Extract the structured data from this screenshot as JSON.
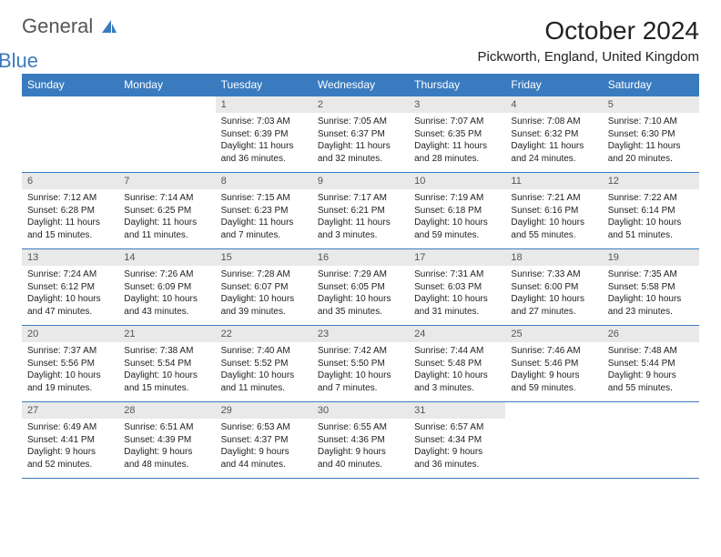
{
  "logo": {
    "part1": "General",
    "part2": "Blue"
  },
  "title": "October 2024",
  "location": "Pickworth, England, United Kingdom",
  "colors": {
    "header_bg": "#3a7bbf",
    "header_text": "#ffffff",
    "daynum_bg": "#e9e9e9",
    "border": "#3a7bbf",
    "logo_gray": "#555555",
    "logo_blue": "#3a7bbf"
  },
  "weekdays": [
    "Sunday",
    "Monday",
    "Tuesday",
    "Wednesday",
    "Thursday",
    "Friday",
    "Saturday"
  ],
  "weeks": [
    [
      null,
      null,
      {
        "n": "1",
        "sr": "Sunrise: 7:03 AM",
        "ss": "Sunset: 6:39 PM",
        "dl": "Daylight: 11 hours and 36 minutes."
      },
      {
        "n": "2",
        "sr": "Sunrise: 7:05 AM",
        "ss": "Sunset: 6:37 PM",
        "dl": "Daylight: 11 hours and 32 minutes."
      },
      {
        "n": "3",
        "sr": "Sunrise: 7:07 AM",
        "ss": "Sunset: 6:35 PM",
        "dl": "Daylight: 11 hours and 28 minutes."
      },
      {
        "n": "4",
        "sr": "Sunrise: 7:08 AM",
        "ss": "Sunset: 6:32 PM",
        "dl": "Daylight: 11 hours and 24 minutes."
      },
      {
        "n": "5",
        "sr": "Sunrise: 7:10 AM",
        "ss": "Sunset: 6:30 PM",
        "dl": "Daylight: 11 hours and 20 minutes."
      }
    ],
    [
      {
        "n": "6",
        "sr": "Sunrise: 7:12 AM",
        "ss": "Sunset: 6:28 PM",
        "dl": "Daylight: 11 hours and 15 minutes."
      },
      {
        "n": "7",
        "sr": "Sunrise: 7:14 AM",
        "ss": "Sunset: 6:25 PM",
        "dl": "Daylight: 11 hours and 11 minutes."
      },
      {
        "n": "8",
        "sr": "Sunrise: 7:15 AM",
        "ss": "Sunset: 6:23 PM",
        "dl": "Daylight: 11 hours and 7 minutes."
      },
      {
        "n": "9",
        "sr": "Sunrise: 7:17 AM",
        "ss": "Sunset: 6:21 PM",
        "dl": "Daylight: 11 hours and 3 minutes."
      },
      {
        "n": "10",
        "sr": "Sunrise: 7:19 AM",
        "ss": "Sunset: 6:18 PM",
        "dl": "Daylight: 10 hours and 59 minutes."
      },
      {
        "n": "11",
        "sr": "Sunrise: 7:21 AM",
        "ss": "Sunset: 6:16 PM",
        "dl": "Daylight: 10 hours and 55 minutes."
      },
      {
        "n": "12",
        "sr": "Sunrise: 7:22 AM",
        "ss": "Sunset: 6:14 PM",
        "dl": "Daylight: 10 hours and 51 minutes."
      }
    ],
    [
      {
        "n": "13",
        "sr": "Sunrise: 7:24 AM",
        "ss": "Sunset: 6:12 PM",
        "dl": "Daylight: 10 hours and 47 minutes."
      },
      {
        "n": "14",
        "sr": "Sunrise: 7:26 AM",
        "ss": "Sunset: 6:09 PM",
        "dl": "Daylight: 10 hours and 43 minutes."
      },
      {
        "n": "15",
        "sr": "Sunrise: 7:28 AM",
        "ss": "Sunset: 6:07 PM",
        "dl": "Daylight: 10 hours and 39 minutes."
      },
      {
        "n": "16",
        "sr": "Sunrise: 7:29 AM",
        "ss": "Sunset: 6:05 PM",
        "dl": "Daylight: 10 hours and 35 minutes."
      },
      {
        "n": "17",
        "sr": "Sunrise: 7:31 AM",
        "ss": "Sunset: 6:03 PM",
        "dl": "Daylight: 10 hours and 31 minutes."
      },
      {
        "n": "18",
        "sr": "Sunrise: 7:33 AM",
        "ss": "Sunset: 6:00 PM",
        "dl": "Daylight: 10 hours and 27 minutes."
      },
      {
        "n": "19",
        "sr": "Sunrise: 7:35 AM",
        "ss": "Sunset: 5:58 PM",
        "dl": "Daylight: 10 hours and 23 minutes."
      }
    ],
    [
      {
        "n": "20",
        "sr": "Sunrise: 7:37 AM",
        "ss": "Sunset: 5:56 PM",
        "dl": "Daylight: 10 hours and 19 minutes."
      },
      {
        "n": "21",
        "sr": "Sunrise: 7:38 AM",
        "ss": "Sunset: 5:54 PM",
        "dl": "Daylight: 10 hours and 15 minutes."
      },
      {
        "n": "22",
        "sr": "Sunrise: 7:40 AM",
        "ss": "Sunset: 5:52 PM",
        "dl": "Daylight: 10 hours and 11 minutes."
      },
      {
        "n": "23",
        "sr": "Sunrise: 7:42 AM",
        "ss": "Sunset: 5:50 PM",
        "dl": "Daylight: 10 hours and 7 minutes."
      },
      {
        "n": "24",
        "sr": "Sunrise: 7:44 AM",
        "ss": "Sunset: 5:48 PM",
        "dl": "Daylight: 10 hours and 3 minutes."
      },
      {
        "n": "25",
        "sr": "Sunrise: 7:46 AM",
        "ss": "Sunset: 5:46 PM",
        "dl": "Daylight: 9 hours and 59 minutes."
      },
      {
        "n": "26",
        "sr": "Sunrise: 7:48 AM",
        "ss": "Sunset: 5:44 PM",
        "dl": "Daylight: 9 hours and 55 minutes."
      }
    ],
    [
      {
        "n": "27",
        "sr": "Sunrise: 6:49 AM",
        "ss": "Sunset: 4:41 PM",
        "dl": "Daylight: 9 hours and 52 minutes."
      },
      {
        "n": "28",
        "sr": "Sunrise: 6:51 AM",
        "ss": "Sunset: 4:39 PM",
        "dl": "Daylight: 9 hours and 48 minutes."
      },
      {
        "n": "29",
        "sr": "Sunrise: 6:53 AM",
        "ss": "Sunset: 4:37 PM",
        "dl": "Daylight: 9 hours and 44 minutes."
      },
      {
        "n": "30",
        "sr": "Sunrise: 6:55 AM",
        "ss": "Sunset: 4:36 PM",
        "dl": "Daylight: 9 hours and 40 minutes."
      },
      {
        "n": "31",
        "sr": "Sunrise: 6:57 AM",
        "ss": "Sunset: 4:34 PM",
        "dl": "Daylight: 9 hours and 36 minutes."
      },
      null,
      null
    ]
  ]
}
